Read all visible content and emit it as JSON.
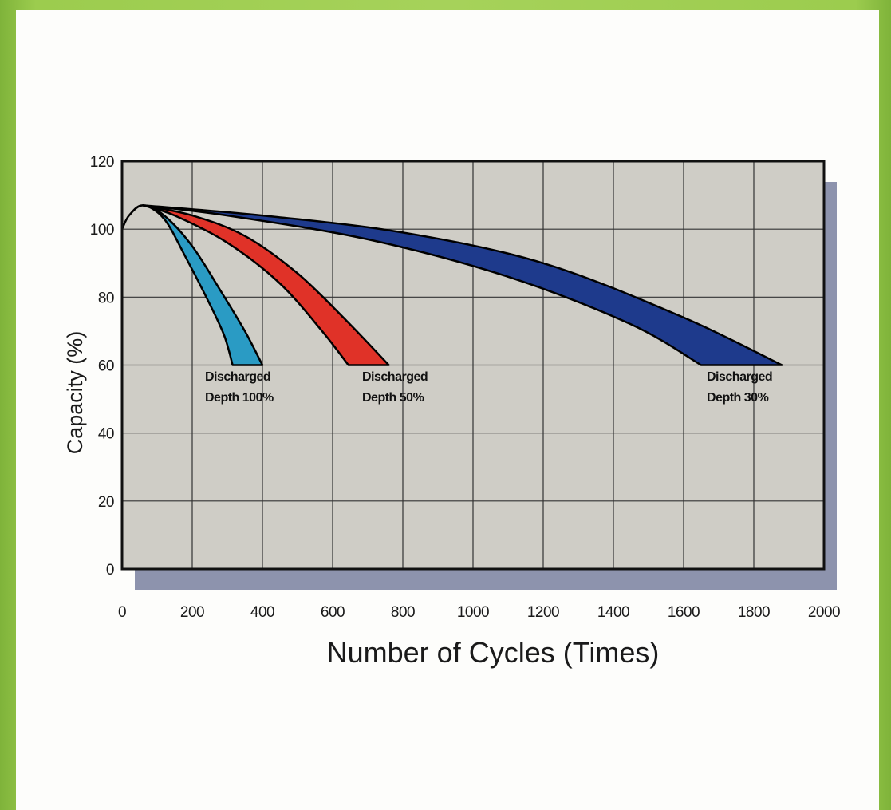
{
  "chart_data": {
    "type": "area",
    "xlabel": "Number of Cycles (Times)",
    "ylabel": "Capacity (%)",
    "xlim": [
      0,
      2000
    ],
    "ylim": [
      0,
      120
    ],
    "x_ticks": [
      0,
      200,
      400,
      600,
      800,
      1000,
      1200,
      1400,
      1600,
      1800,
      2000
    ],
    "y_ticks": [
      0,
      20,
      40,
      60,
      80,
      100,
      120
    ],
    "grid": true,
    "series": [
      {
        "color": "#2a9bc4",
        "annotation": [
          "Discharged",
          "Depth 100%"
        ],
        "upper": [
          {
            "x": 0,
            "y": 100
          },
          {
            "x": 20,
            "y": 104
          },
          {
            "x": 60,
            "y": 107
          },
          {
            "x": 120,
            "y": 104
          },
          {
            "x": 200,
            "y": 95
          },
          {
            "x": 280,
            "y": 82
          },
          {
            "x": 350,
            "y": 70
          },
          {
            "x": 400,
            "y": 60
          }
        ],
        "lower": [
          {
            "x": 0,
            "y": 100
          },
          {
            "x": 20,
            "y": 104
          },
          {
            "x": 60,
            "y": 107
          },
          {
            "x": 120,
            "y": 103
          },
          {
            "x": 180,
            "y": 92
          },
          {
            "x": 240,
            "y": 80
          },
          {
            "x": 290,
            "y": 69
          },
          {
            "x": 315,
            "y": 60
          }
        ]
      },
      {
        "color": "#e03228",
        "annotation": [
          "Discharged",
          "Depth 50%"
        ],
        "upper": [
          {
            "x": 60,
            "y": 107
          },
          {
            "x": 200,
            "y": 104
          },
          {
            "x": 350,
            "y": 98
          },
          {
            "x": 500,
            "y": 87
          },
          {
            "x": 640,
            "y": 73
          },
          {
            "x": 760,
            "y": 60
          }
        ],
        "lower": [
          {
            "x": 60,
            "y": 107
          },
          {
            "x": 150,
            "y": 104
          },
          {
            "x": 300,
            "y": 96
          },
          {
            "x": 450,
            "y": 84
          },
          {
            "x": 570,
            "y": 70
          },
          {
            "x": 645,
            "y": 60
          }
        ]
      },
      {
        "color": "#1e3a8c",
        "annotation": [
          "Discharged",
          "Depth 30%"
        ],
        "upper": [
          {
            "x": 60,
            "y": 107
          },
          {
            "x": 400,
            "y": 104
          },
          {
            "x": 800,
            "y": 99
          },
          {
            "x": 1200,
            "y": 90
          },
          {
            "x": 1600,
            "y": 74
          },
          {
            "x": 1880,
            "y": 60
          }
        ],
        "lower": [
          {
            "x": 60,
            "y": 107
          },
          {
            "x": 300,
            "y": 104
          },
          {
            "x": 700,
            "y": 97
          },
          {
            "x": 1100,
            "y": 86
          },
          {
            "x": 1450,
            "y": 72
          },
          {
            "x": 1650,
            "y": 60
          }
        ]
      }
    ]
  },
  "colors": {
    "plot_background": "#cfcdc6",
    "plot_shadow": "#8d93ad",
    "grid": "#333333",
    "card": "#fdfdfb",
    "frame": "#9ccc4e"
  }
}
